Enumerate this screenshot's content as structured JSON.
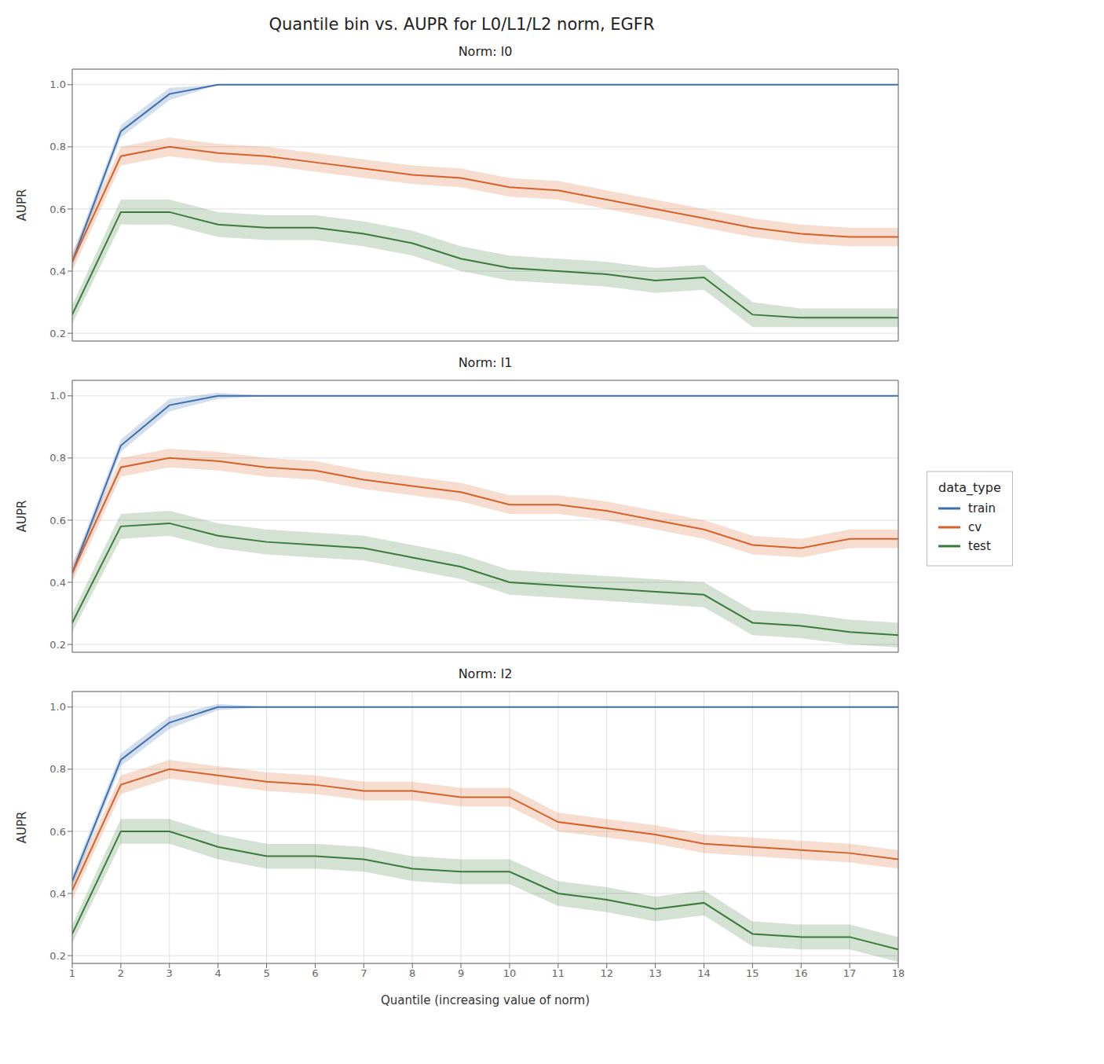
{
  "title": "Quantile bin vs. AUPR for L0/L1/L2 norm, EGFR",
  "legend_title": "data_type",
  "chart_data": [
    {
      "type": "line",
      "title": "Norm: l0",
      "y_label": "AUPR",
      "x": [
        1,
        2,
        3,
        4,
        5,
        6,
        7,
        8,
        9,
        10,
        11,
        12,
        13,
        14,
        15,
        16,
        17,
        18
      ],
      "xlim": [
        1,
        18
      ],
      "xticks": [
        1,
        2,
        3,
        4,
        5,
        6,
        7,
        8,
        9,
        10,
        11,
        12,
        13,
        14,
        15,
        16,
        17,
        18
      ],
      "ylim": [
        0.175,
        1.05
      ],
      "yticks": [
        0.2,
        0.4,
        0.6,
        0.8,
        {
          "value": 1.0,
          "label": "1.0"
        }
      ],
      "grid": true,
      "tick_labels": "y",
      "series": [
        {
          "name": "train",
          "color": "#3b6faf",
          "values": [
            0.43,
            0.85,
            0.97,
            1.0,
            1.0,
            1.0,
            1.0,
            1.0,
            1.0,
            1.0,
            1.0,
            1.0,
            1.0,
            1.0,
            1.0,
            1.0,
            1.0,
            1.0
          ],
          "low": [
            0.41,
            0.83,
            0.95,
            1.0,
            1.0,
            1.0,
            1.0,
            1.0,
            1.0,
            1.0,
            1.0,
            1.0,
            1.0,
            1.0,
            1.0,
            1.0,
            1.0,
            1.0
          ],
          "high": [
            0.45,
            0.87,
            0.99,
            1.0,
            1.0,
            1.0,
            1.0,
            1.0,
            1.0,
            1.0,
            1.0,
            1.0,
            1.0,
            1.0,
            1.0,
            1.0,
            1.0,
            1.0
          ]
        },
        {
          "name": "cv",
          "color": "#d4622a",
          "values": [
            0.43,
            0.77,
            0.8,
            0.78,
            0.77,
            0.75,
            0.73,
            0.71,
            0.7,
            0.67,
            0.66,
            0.63,
            0.6,
            0.57,
            0.54,
            0.52,
            0.51,
            0.51
          ],
          "low": [
            0.4,
            0.74,
            0.77,
            0.75,
            0.74,
            0.72,
            0.7,
            0.68,
            0.67,
            0.64,
            0.63,
            0.6,
            0.57,
            0.54,
            0.51,
            0.49,
            0.48,
            0.48
          ],
          "high": [
            0.46,
            0.8,
            0.83,
            0.81,
            0.8,
            0.78,
            0.76,
            0.74,
            0.73,
            0.7,
            0.69,
            0.66,
            0.63,
            0.6,
            0.57,
            0.55,
            0.54,
            0.54
          ]
        },
        {
          "name": "test",
          "color": "#3a7a3a",
          "values": [
            0.26,
            0.59,
            0.59,
            0.55,
            0.54,
            0.54,
            0.52,
            0.49,
            0.44,
            0.41,
            0.4,
            0.39,
            0.37,
            0.38,
            0.26,
            0.25,
            0.25,
            0.25
          ],
          "low": [
            0.23,
            0.55,
            0.55,
            0.51,
            0.5,
            0.5,
            0.48,
            0.45,
            0.4,
            0.37,
            0.36,
            0.35,
            0.33,
            0.34,
            0.22,
            0.22,
            0.22,
            0.22
          ],
          "high": [
            0.29,
            0.63,
            0.63,
            0.59,
            0.58,
            0.58,
            0.56,
            0.53,
            0.48,
            0.45,
            0.44,
            0.43,
            0.41,
            0.42,
            0.3,
            0.28,
            0.28,
            0.28
          ]
        }
      ]
    },
    {
      "type": "line",
      "title": "Norm: l1",
      "y_label": "AUPR",
      "x": [
        1,
        2,
        3,
        4,
        5,
        6,
        7,
        8,
        9,
        10,
        11,
        12,
        13,
        14,
        15,
        16,
        17,
        18
      ],
      "xlim": [
        1,
        18
      ],
      "xticks": [
        1,
        2,
        3,
        4,
        5,
        6,
        7,
        8,
        9,
        10,
        11,
        12,
        13,
        14,
        15,
        16,
        17,
        18
      ],
      "ylim": [
        0.175,
        1.05
      ],
      "yticks": [
        0.2,
        0.4,
        0.6,
        0.8,
        {
          "value": 1.0,
          "label": "1.0"
        }
      ],
      "grid": true,
      "tick_labels": "y",
      "legend": "right",
      "series": [
        {
          "name": "train",
          "color": "#3b6faf",
          "values": [
            0.43,
            0.84,
            0.97,
            1.0,
            1.0,
            1.0,
            1.0,
            1.0,
            1.0,
            1.0,
            1.0,
            1.0,
            1.0,
            1.0,
            1.0,
            1.0,
            1.0,
            1.0
          ],
          "low": [
            0.41,
            0.82,
            0.95,
            0.99,
            1.0,
            1.0,
            1.0,
            1.0,
            1.0,
            1.0,
            1.0,
            1.0,
            1.0,
            1.0,
            1.0,
            1.0,
            1.0,
            1.0
          ],
          "high": [
            0.45,
            0.86,
            0.99,
            1.01,
            1.0,
            1.0,
            1.0,
            1.0,
            1.0,
            1.0,
            1.0,
            1.0,
            1.0,
            1.0,
            1.0,
            1.0,
            1.0,
            1.0
          ]
        },
        {
          "name": "cv",
          "color": "#d4622a",
          "values": [
            0.43,
            0.77,
            0.8,
            0.79,
            0.77,
            0.76,
            0.73,
            0.71,
            0.69,
            0.65,
            0.65,
            0.63,
            0.6,
            0.57,
            0.52,
            0.51,
            0.54,
            0.54
          ],
          "low": [
            0.4,
            0.74,
            0.77,
            0.76,
            0.74,
            0.73,
            0.7,
            0.68,
            0.66,
            0.62,
            0.62,
            0.6,
            0.57,
            0.54,
            0.49,
            0.48,
            0.51,
            0.51
          ],
          "high": [
            0.46,
            0.8,
            0.83,
            0.82,
            0.8,
            0.79,
            0.76,
            0.74,
            0.72,
            0.68,
            0.68,
            0.66,
            0.63,
            0.6,
            0.55,
            0.54,
            0.57,
            0.57
          ]
        },
        {
          "name": "test",
          "color": "#3a7a3a",
          "values": [
            0.27,
            0.58,
            0.59,
            0.55,
            0.53,
            0.52,
            0.51,
            0.48,
            0.45,
            0.4,
            0.39,
            0.38,
            0.37,
            0.36,
            0.27,
            0.26,
            0.24,
            0.23
          ],
          "low": [
            0.24,
            0.54,
            0.55,
            0.51,
            0.49,
            0.48,
            0.47,
            0.44,
            0.41,
            0.36,
            0.35,
            0.34,
            0.33,
            0.32,
            0.23,
            0.22,
            0.2,
            0.19
          ],
          "high": [
            0.3,
            0.62,
            0.63,
            0.59,
            0.57,
            0.56,
            0.55,
            0.52,
            0.49,
            0.44,
            0.43,
            0.42,
            0.41,
            0.4,
            0.31,
            0.3,
            0.28,
            0.27
          ]
        }
      ]
    },
    {
      "type": "line",
      "title": "Norm: l2",
      "x_label": "Quantile (increasing value of norm)",
      "y_label": "AUPR",
      "x": [
        1,
        2,
        3,
        4,
        5,
        6,
        7,
        8,
        9,
        10,
        11,
        12,
        13,
        14,
        15,
        16,
        17,
        18
      ],
      "xlim": [
        1,
        18
      ],
      "xticks": [
        1,
        2,
        3,
        4,
        5,
        6,
        7,
        8,
        9,
        10,
        11,
        12,
        13,
        14,
        15,
        16,
        17,
        18
      ],
      "ylim": [
        0.175,
        1.05
      ],
      "yticks": [
        0.2,
        0.4,
        0.6,
        0.8,
        {
          "value": 1.0,
          "label": "1.0"
        }
      ],
      "grid": true,
      "series": [
        {
          "name": "train",
          "color": "#3b6faf",
          "values": [
            0.44,
            0.83,
            0.95,
            1.0,
            1.0,
            1.0,
            1.0,
            1.0,
            1.0,
            1.0,
            1.0,
            1.0,
            1.0,
            1.0,
            1.0,
            1.0,
            1.0,
            1.0
          ],
          "low": [
            0.42,
            0.81,
            0.93,
            0.99,
            1.0,
            1.0,
            1.0,
            1.0,
            1.0,
            1.0,
            1.0,
            1.0,
            1.0,
            1.0,
            1.0,
            1.0,
            1.0,
            1.0
          ],
          "high": [
            0.46,
            0.85,
            0.97,
            1.01,
            1.0,
            1.0,
            1.0,
            1.0,
            1.0,
            1.0,
            1.0,
            1.0,
            1.0,
            1.0,
            1.0,
            1.0,
            1.0,
            1.0
          ]
        },
        {
          "name": "cv",
          "color": "#d4622a",
          "values": [
            0.41,
            0.75,
            0.8,
            0.78,
            0.76,
            0.75,
            0.73,
            0.73,
            0.71,
            0.71,
            0.63,
            0.61,
            0.59,
            0.56,
            0.55,
            0.54,
            0.53,
            0.51
          ],
          "low": [
            0.38,
            0.72,
            0.77,
            0.75,
            0.73,
            0.72,
            0.7,
            0.7,
            0.68,
            0.68,
            0.6,
            0.58,
            0.56,
            0.53,
            0.52,
            0.51,
            0.5,
            0.48
          ],
          "high": [
            0.44,
            0.78,
            0.83,
            0.81,
            0.79,
            0.78,
            0.76,
            0.76,
            0.74,
            0.74,
            0.66,
            0.64,
            0.62,
            0.59,
            0.58,
            0.57,
            0.56,
            0.54
          ]
        },
        {
          "name": "test",
          "color": "#3a7a3a",
          "values": [
            0.27,
            0.6,
            0.6,
            0.55,
            0.52,
            0.52,
            0.51,
            0.48,
            0.47,
            0.47,
            0.4,
            0.38,
            0.35,
            0.37,
            0.27,
            0.26,
            0.26,
            0.22
          ],
          "low": [
            0.24,
            0.56,
            0.56,
            0.51,
            0.48,
            0.48,
            0.47,
            0.44,
            0.43,
            0.43,
            0.36,
            0.34,
            0.31,
            0.33,
            0.23,
            0.22,
            0.22,
            0.18
          ],
          "high": [
            0.3,
            0.64,
            0.64,
            0.59,
            0.56,
            0.56,
            0.55,
            0.52,
            0.51,
            0.51,
            0.44,
            0.42,
            0.39,
            0.41,
            0.31,
            0.3,
            0.3,
            0.26
          ]
        }
      ]
    }
  ]
}
